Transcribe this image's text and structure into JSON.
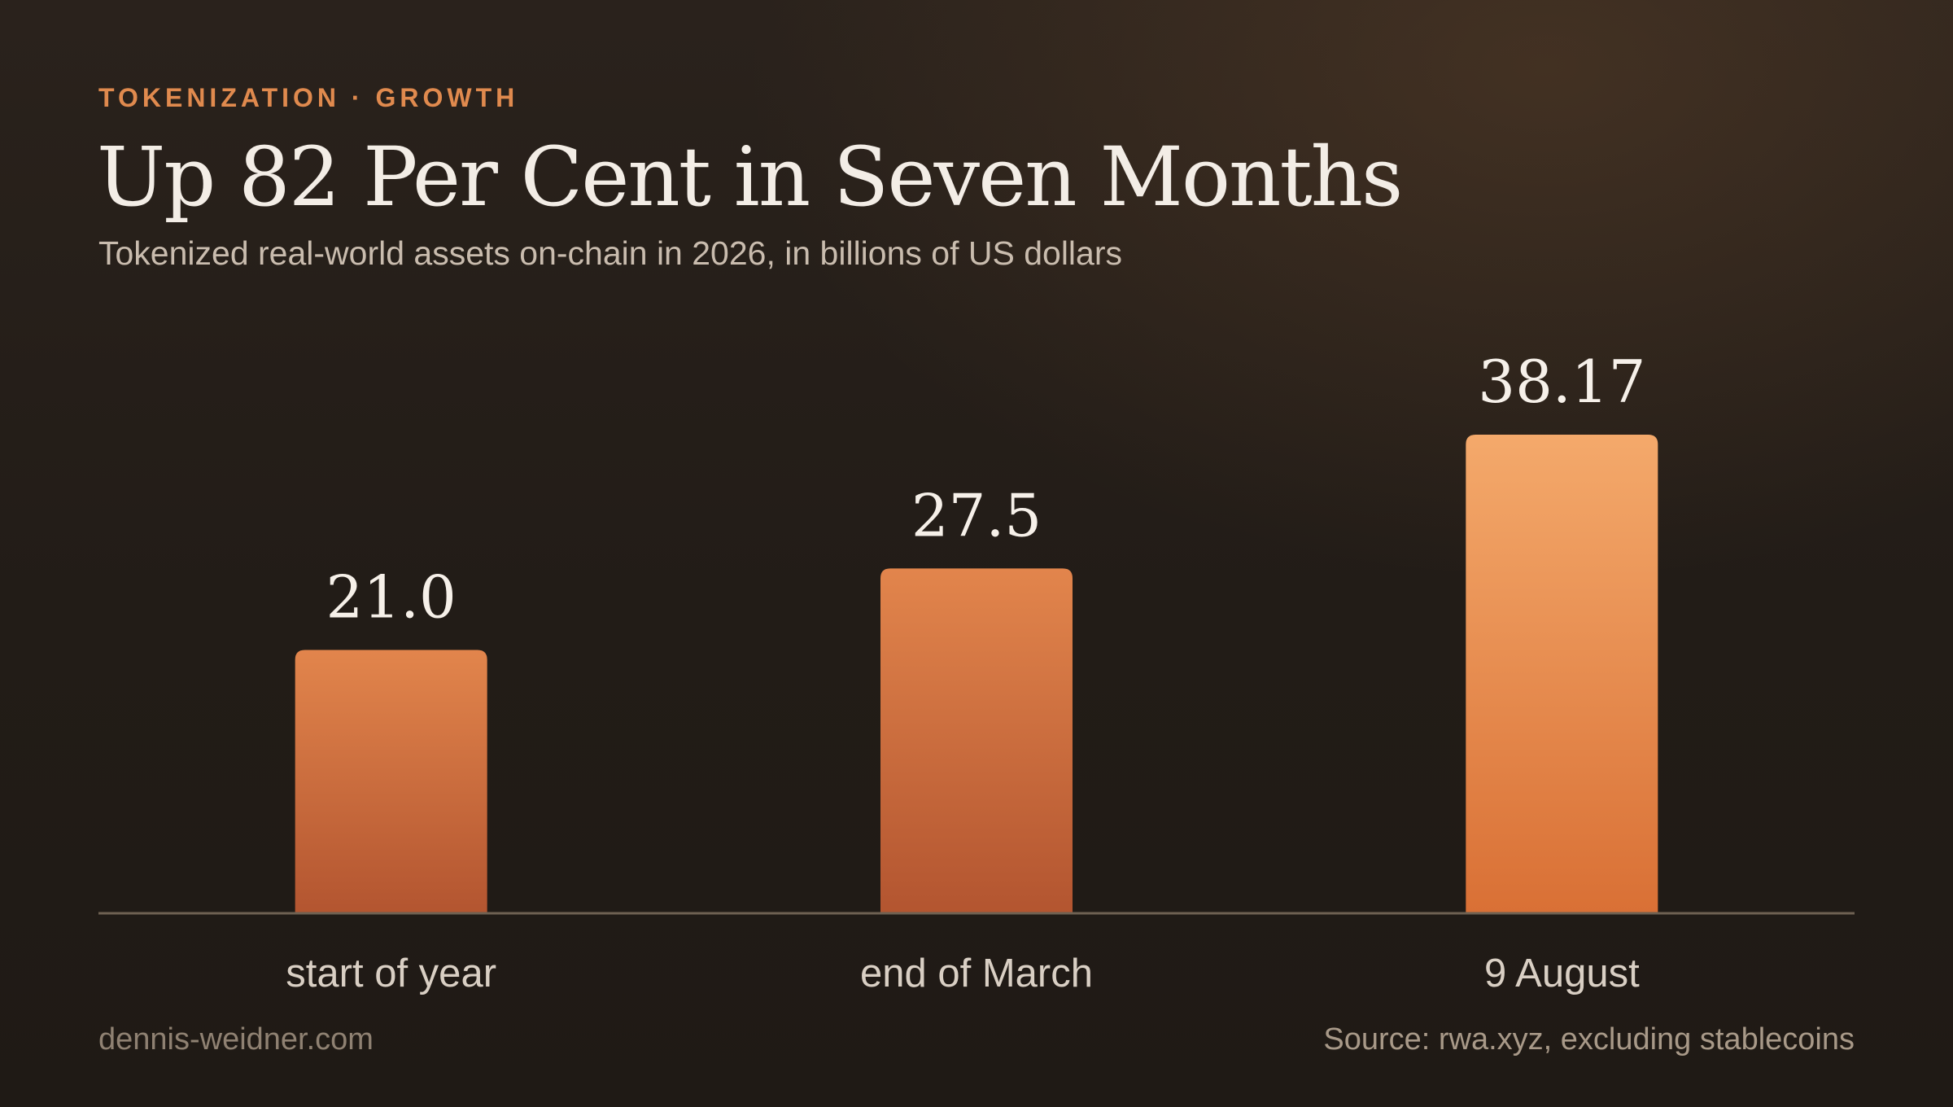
{
  "header": {
    "eyebrow": "TOKENIZATION · GROWTH",
    "title": "Up 82 Per Cent in Seven Months",
    "subtitle": "Tokenized real-world assets on-chain in 2026, in billions of US dollars"
  },
  "footer": {
    "credit": "dennis-weidner.com",
    "source": "Source: rwa.xyz, excluding stablecoins"
  },
  "colors": {
    "accent": "#e08a4e",
    "bar_top": "#e2854c",
    "bar_bottom": "#b35530",
    "highlight_top": "#f4a96b",
    "highlight_bottom": "#d97035",
    "axis": "#6e6152"
  },
  "chart_data": {
    "type": "bar",
    "categories": [
      "start of year",
      "end of March",
      "9 August"
    ],
    "values": [
      21.0,
      27.5,
      38.17
    ],
    "value_labels": [
      "21.0",
      "27.5",
      "38.17"
    ],
    "highlight_index": 2,
    "title": "Up 82 Per Cent in Seven Months",
    "subtitle": "Tokenized real-world assets on-chain in 2026, in billions of US dollars",
    "xlabel": "",
    "ylabel": "",
    "ylim": [
      0,
      42
    ],
    "grid": false,
    "legend": "none"
  }
}
